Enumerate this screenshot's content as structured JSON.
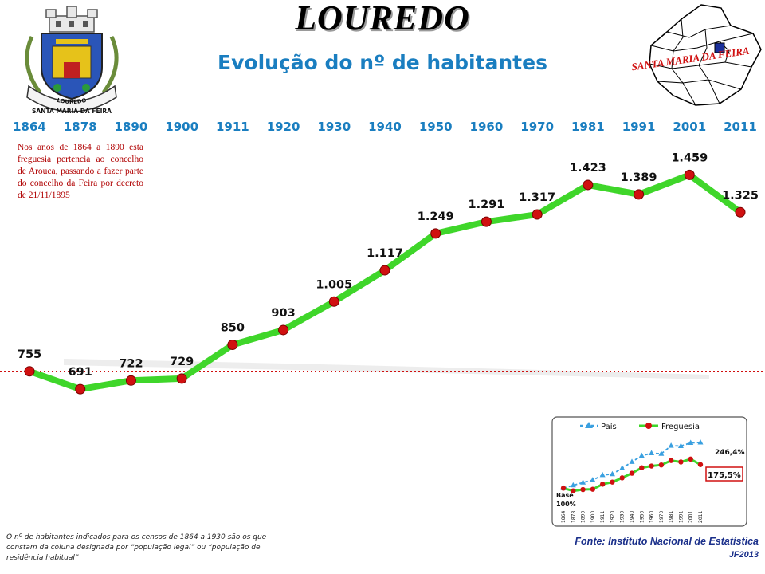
{
  "header": {
    "title": "LOUREDO",
    "subtitle": "Evolução do nº de habitantes"
  },
  "coat_of_arms": {
    "text_line1": "LOUREDO",
    "text_line2": "SANTA MARIA DA FEIRA"
  },
  "map": {
    "label": "SANTA MARIA DA FEIRA"
  },
  "note": "Nos anos de 1864 a 1890 esta freguesia pertencia ao concelho de Arouca, passando a fazer parte do concelho da Feira por decreto de 21/11/1895",
  "footnote": "O nº de habitantes indicados para os censos de 1864 a 1930 são os que constam da coluna designada por “população legal” ou “população de residência habitual”",
  "source": "Fonte: Instituto Nacional de Estatística",
  "author": "JF2013",
  "colors": {
    "title_blue": "#1a7ec0",
    "line_green": "#3fd62a",
    "marker_red": "#d01010",
    "baseline_red": "#d01010",
    "pais_blue": "#3aa0e0",
    "note_red": "#b00000"
  },
  "chart_data": [
    {
      "type": "line",
      "categories": [
        "1864",
        "1878",
        "1890",
        "1900",
        "1911",
        "1920",
        "1930",
        "1940",
        "1950",
        "1960",
        "1970",
        "1981",
        "1991",
        "2001",
        "2011"
      ],
      "series": [
        {
          "values": [
            755,
            691,
            722,
            729,
            850,
            903,
            1005,
            1117,
            1249,
            1291,
            1317,
            1423,
            1389,
            1459,
            1325
          ]
        }
      ],
      "data_labels": [
        "755",
        "691",
        "722",
        "729",
        "850",
        "903",
        "1.005",
        "1.117",
        "1.249",
        "1.291",
        "1.317",
        "1.423",
        "1.389",
        "1.459",
        "1.325"
      ],
      "reference_line": 755,
      "ylim": [
        500,
        1600
      ],
      "grid": false,
      "legend": "none"
    },
    {
      "type": "line",
      "categories": [
        "1864",
        "1878",
        "1890",
        "1900",
        "1911",
        "1920",
        "1930",
        "1940",
        "1950",
        "1960",
        "1970",
        "1981",
        "1991",
        "2001",
        "2011"
      ],
      "series": [
        {
          "name": "País",
          "values": [
            100,
            109,
            118,
            126,
            142,
            145,
            164,
            184,
            204,
            212,
            210,
            236,
            235,
            245,
            246.4
          ]
        },
        {
          "name": "Freguesia",
          "values": [
            100,
            91.5,
            95.6,
            96.6,
            112.6,
            119.6,
            133.1,
            147.9,
            165.4,
            171,
            174.4,
            188.5,
            184,
            193.2,
            175.5
          ]
        }
      ],
      "annotations": {
        "base": "Base",
        "base_pct": "100%",
        "pais_end": "246,4%",
        "freguesia_end": "175,5%"
      },
      "ylim": [
        60,
        300
      ],
      "grid": false,
      "legend": "top-left"
    }
  ]
}
